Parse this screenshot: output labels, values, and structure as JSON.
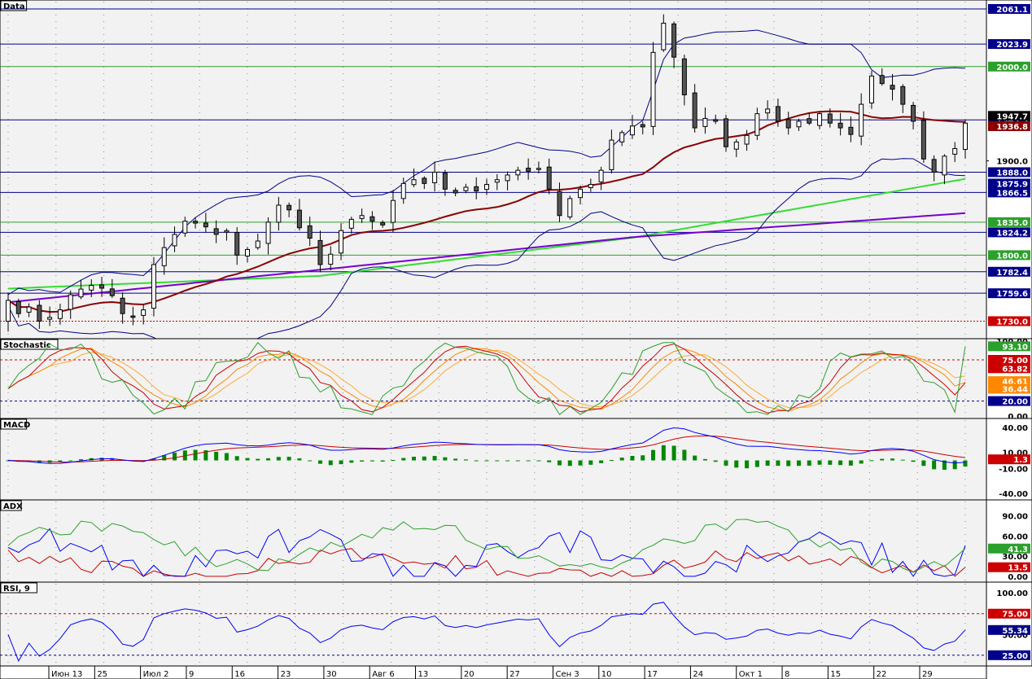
{
  "colors": {
    "background": "#f2f2f2",
    "grid": "#888888",
    "bull": "#ffffff",
    "bear": "#555555",
    "blue": "#00008b",
    "green": "#2ca02c",
    "red": "#cc0000",
    "darkred": "#8b0000",
    "lime": "#33dd33",
    "purple": "#7700cc",
    "orange": "#ff8800",
    "tag_blue": "#0000cc",
    "tag_green": "#006400",
    "tag_red": "#cc0000"
  },
  "x_labels": [
    "Июн 13",
    "25",
    "Июл 2",
    "9",
    "16",
    "23",
    "30",
    "Авг 6",
    "13",
    "20",
    "27",
    "Сен 3",
    "10",
    "17",
    "24",
    "Окт 1",
    "8",
    "15",
    "22",
    "29"
  ],
  "chart_data": [
    {
      "type": "candlestick",
      "title": "Data",
      "ylim": [
        1714,
        2068
      ],
      "y_ticks": [
        1900
      ],
      "levels": [
        {
          "value": 2061.1,
          "color": "blue",
          "label": "2061.1"
        },
        {
          "value": 2023.9,
          "color": "blue",
          "label": "2023.9"
        },
        {
          "value": 2000.0,
          "color": "green",
          "label": "2000.0"
        },
        {
          "value": 1943.5,
          "color": "blue",
          "label": "1943.5"
        },
        {
          "value": 1888.0,
          "color": "blue",
          "label": "1888.0"
        },
        {
          "value": 1866.5,
          "color": "blue",
          "label": "1866.5"
        },
        {
          "value": 1835.0,
          "color": "green",
          "label": "1835.0"
        },
        {
          "value": 1824.2,
          "color": "blue",
          "label": "1824.2"
        },
        {
          "value": 1800.0,
          "color": "green",
          "label": "1800.0"
        },
        {
          "value": 1782.4,
          "color": "blue",
          "label": "1782.4"
        },
        {
          "value": 1759.6,
          "color": "blue",
          "label": "1759.6"
        },
        {
          "value": 1730.0,
          "color": "red",
          "label": "1730.0",
          "dotted": true
        }
      ],
      "extra_tags": [
        {
          "value": 1875.9,
          "label": "1875.9",
          "color": "blue"
        },
        {
          "value": 1936.8,
          "label": "1936.8",
          "color": "darkred"
        },
        {
          "value": 1947.7,
          "label": "1947.7",
          "color": "black"
        }
      ],
      "close_series": [
        1752,
        1738,
        1745,
        1730,
        1734,
        1742,
        1758,
        1764,
        1768,
        1765,
        1757,
        1738,
        1734,
        1742,
        1790,
        1808,
        1822,
        1836,
        1834,
        1830,
        1822,
        1826,
        1800,
        1806,
        1815,
        1835,
        1853,
        1848,
        1829,
        1818,
        1790,
        1801,
        1826,
        1838,
        1842,
        1836,
        1832,
        1858,
        1876,
        1880,
        1876,
        1888,
        1870,
        1866,
        1872,
        1868,
        1875,
        1880,
        1885,
        1890,
        1889,
        1892,
        1870,
        1842,
        1860,
        1870,
        1875,
        1890,
        1922,
        1930,
        1937,
        1936,
        2015,
        2046,
        2010,
        1970,
        1935,
        1945,
        1942,
        1915,
        1920,
        1927,
        1950,
        1955,
        1942,
        1935,
        1942,
        1940,
        1950,
        1940,
        1935,
        1928,
        1960,
        1990,
        1982,
        1976,
        1960,
        1942,
        1902,
        1888,
        1905,
        1913,
        1940
      ],
      "ohlc_sample": [
        {
          "o": 1730,
          "h": 1758,
          "l": 1722,
          "c": 1752
        },
        {
          "o": 1752,
          "h": 1755,
          "l": 1730,
          "c": 1738
        },
        {
          "o": 1738,
          "h": 1750,
          "l": 1728,
          "c": 1745
        }
      ],
      "series": [
        {
          "name": "",
          "color": "darkred",
          "kind": "ma20"
        },
        {
          "name": "",
          "color": "blue",
          "kind": "bollinger"
        },
        {
          "name": "",
          "color": "lime",
          "kind": "ma100"
        },
        {
          "name": "",
          "color": "purple",
          "kind": "ma200"
        }
      ]
    },
    {
      "type": "line",
      "title": "Stochastic",
      "ylim": [
        0,
        100
      ],
      "y_ticks": [
        "100.00",
        "0.00"
      ],
      "levels": [
        {
          "value": 75,
          "color": "red",
          "label": "75.00",
          "dotted": true
        },
        {
          "value": 20,
          "color": "blue",
          "label": "20.00",
          "dotted": true
        }
      ],
      "extra_tags": [
        {
          "value": 93.1,
          "label": "93.10",
          "color": "green"
        },
        {
          "value": 63.82,
          "label": "63.82",
          "color": "red"
        },
        {
          "value": 46.61,
          "label": "46.61",
          "color": "orange"
        },
        {
          "value": 36.44,
          "label": "36.44",
          "color": "orange"
        }
      ]
    },
    {
      "type": "bar+line",
      "title": "MACD",
      "ylim": [
        -45,
        48
      ],
      "y_ticks": [
        "40.00",
        "10.00",
        "-10.00",
        "-40.00"
      ],
      "extra_tags": [
        {
          "value": 1.3,
          "label": "1.3",
          "color": "red"
        }
      ]
    },
    {
      "type": "line",
      "title": "ADX",
      "ylim": [
        -5,
        110
      ],
      "y_ticks": [
        "90.00",
        "60.00",
        "30.00",
        "0.00"
      ],
      "extra_tags": [
        {
          "value": 41.3,
          "label": "41.3",
          "color": "green"
        },
        {
          "value": 13.5,
          "label": "13.5",
          "color": "red"
        }
      ]
    },
    {
      "type": "line",
      "title": "RSI, 9",
      "ylim": [
        15,
        110
      ],
      "y_ticks": [
        "100.00",
        "50.00"
      ],
      "levels": [
        {
          "value": 75,
          "color": "red",
          "label": "75.00",
          "dotted": true
        },
        {
          "value": 25,
          "color": "blue",
          "label": "25.00",
          "dotted": true
        }
      ],
      "extra_tags": [
        {
          "value": 55.34,
          "label": "55.34",
          "color": "blue"
        }
      ]
    }
  ]
}
